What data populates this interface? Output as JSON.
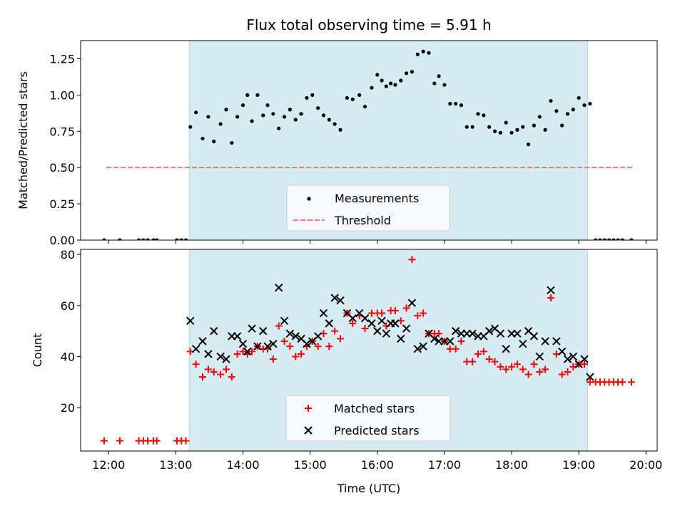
{
  "title": "Flux total observing time = 5.91 h",
  "xlabel": "Time (UTC)",
  "x_ticks": [
    "12:00",
    "13:00",
    "14:00",
    "15:00",
    "16:00",
    "17:00",
    "18:00",
    "19:00",
    "20:00"
  ],
  "colors": {
    "span_fill": "#add8e6",
    "measurement": "#000000",
    "threshold": "#ff6666",
    "matched": "#ff0000",
    "predicted": "#000000"
  },
  "chart_data": [
    {
      "type": "scatter",
      "ylabel": "Matched/Predicted stars",
      "xlim": [
        "11:35",
        "20:10"
      ],
      "ylim": [
        0,
        1.375
      ],
      "y_ticks": [
        "0.00",
        "0.25",
        "0.50",
        "0.75",
        "1.00",
        "1.25"
      ],
      "legend": {
        "position": "lower center",
        "entries": [
          "Measurements",
          "Threshold"
        ]
      },
      "shaded_span": {
        "start": "13:12",
        "end": "19:08"
      },
      "threshold": {
        "name": "Threshold",
        "y": 0.5,
        "x_start": "11:58",
        "x_end": "19:48"
      },
      "series": [
        {
          "name": "Measurements",
          "marker": "dot",
          "points": [
            [
              "11:56",
              0
            ],
            [
              "12:10",
              0
            ],
            [
              "12:27",
              0
            ],
            [
              "12:31",
              0
            ],
            [
              "12:35",
              0
            ],
            [
              "12:40",
              0
            ],
            [
              "12:43",
              0
            ],
            [
              "13:01",
              0
            ],
            [
              "13:05",
              0
            ],
            [
              "13:09",
              0
            ],
            [
              "13:13",
              0.78
            ],
            [
              "13:18",
              0.88
            ],
            [
              "13:24",
              0.7
            ],
            [
              "13:29",
              0.85
            ],
            [
              "13:34",
              0.68
            ],
            [
              "13:40",
              0.8
            ],
            [
              "13:45",
              0.9
            ],
            [
              "13:50",
              0.67
            ],
            [
              "13:55",
              0.85
            ],
            [
              "14:00",
              0.93
            ],
            [
              "14:04",
              1.0
            ],
            [
              "14:08",
              0.82
            ],
            [
              "14:13",
              1.0
            ],
            [
              "14:18",
              0.86
            ],
            [
              "14:22",
              0.93
            ],
            [
              "14:27",
              0.87
            ],
            [
              "14:32",
              0.77
            ],
            [
              "14:37",
              0.85
            ],
            [
              "14:42",
              0.9
            ],
            [
              "14:47",
              0.83
            ],
            [
              "14:52",
              0.87
            ],
            [
              "14:57",
              0.98
            ],
            [
              "15:02",
              1.0
            ],
            [
              "15:07",
              0.91
            ],
            [
              "15:12",
              0.86
            ],
            [
              "15:17",
              0.83
            ],
            [
              "15:22",
              0.8
            ],
            [
              "15:27",
              0.76
            ],
            [
              "15:33",
              0.98
            ],
            [
              "15:38",
              0.97
            ],
            [
              "15:44",
              1.0
            ],
            [
              "15:49",
              0.92
            ],
            [
              "15:55",
              1.05
            ],
            [
              "16:00",
              1.14
            ],
            [
              "16:04",
              1.1
            ],
            [
              "16:08",
              1.06
            ],
            [
              "16:12",
              1.08
            ],
            [
              "16:16",
              1.07
            ],
            [
              "16:21",
              1.1
            ],
            [
              "16:26",
              1.15
            ],
            [
              "16:31",
              1.16
            ],
            [
              "16:36",
              1.28
            ],
            [
              "16:41",
              1.3
            ],
            [
              "16:46",
              1.29
            ],
            [
              "16:51",
              1.08
            ],
            [
              "16:55",
              1.13
            ],
            [
              "17:00",
              1.07
            ],
            [
              "17:05",
              0.94
            ],
            [
              "17:10",
              0.94
            ],
            [
              "17:15",
              0.93
            ],
            [
              "17:20",
              0.78
            ],
            [
              "17:25",
              0.78
            ],
            [
              "17:30",
              0.87
            ],
            [
              "17:35",
              0.86
            ],
            [
              "17:40",
              0.78
            ],
            [
              "17:45",
              0.75
            ],
            [
              "17:50",
              0.74
            ],
            [
              "17:55",
              0.81
            ],
            [
              "18:00",
              0.74
            ],
            [
              "18:05",
              0.76
            ],
            [
              "18:10",
              0.78
            ],
            [
              "18:15",
              0.66
            ],
            [
              "18:20",
              0.79
            ],
            [
              "18:25",
              0.85
            ],
            [
              "18:30",
              0.76
            ],
            [
              "18:35",
              0.96
            ],
            [
              "18:40",
              0.89
            ],
            [
              "18:45",
              0.79
            ],
            [
              "18:50",
              0.87
            ],
            [
              "18:55",
              0.9
            ],
            [
              "19:00",
              0.98
            ],
            [
              "19:05",
              0.93
            ],
            [
              "19:10",
              0.94
            ],
            [
              "19:15",
              0
            ],
            [
              "19:19",
              0
            ],
            [
              "19:23",
              0
            ],
            [
              "19:27",
              0
            ],
            [
              "19:31",
              0
            ],
            [
              "19:35",
              0
            ],
            [
              "19:39",
              0
            ],
            [
              "19:47",
              0
            ]
          ]
        }
      ]
    },
    {
      "type": "scatter",
      "ylabel": "Count",
      "xlabel": "Time (UTC)",
      "xlim": [
        "11:35",
        "20:10"
      ],
      "ylim": [
        3,
        82
      ],
      "y_ticks": [
        "20",
        "40",
        "60",
        "80"
      ],
      "legend": {
        "position": "lower center",
        "entries": [
          "Matched stars",
          "Predicted stars"
        ]
      },
      "shaded_span": {
        "start": "13:12",
        "end": "19:08"
      },
      "series": [
        {
          "name": "Matched stars",
          "marker": "+",
          "points": [
            [
              "11:56",
              7
            ],
            [
              "12:10",
              7
            ],
            [
              "12:27",
              7
            ],
            [
              "12:31",
              7
            ],
            [
              "12:35",
              7
            ],
            [
              "12:40",
              7
            ],
            [
              "12:43",
              7
            ],
            [
              "13:01",
              7
            ],
            [
              "13:05",
              7
            ],
            [
              "13:09",
              7
            ],
            [
              "13:13",
              42
            ],
            [
              "13:18",
              37
            ],
            [
              "13:24",
              32
            ],
            [
              "13:29",
              35
            ],
            [
              "13:34",
              34
            ],
            [
              "13:40",
              33
            ],
            [
              "13:45",
              35
            ],
            [
              "13:50",
              32
            ],
            [
              "13:55",
              41
            ],
            [
              "14:00",
              42
            ],
            [
              "14:04",
              41
            ],
            [
              "14:08",
              42
            ],
            [
              "14:13",
              44
            ],
            [
              "14:18",
              43
            ],
            [
              "14:22",
              43
            ],
            [
              "14:27",
              39
            ],
            [
              "14:32",
              52
            ],
            [
              "14:37",
              46
            ],
            [
              "14:42",
              44
            ],
            [
              "14:47",
              40
            ],
            [
              "14:52",
              41
            ],
            [
              "14:57",
              44
            ],
            [
              "15:02",
              46
            ],
            [
              "15:07",
              44
            ],
            [
              "15:12",
              49
            ],
            [
              "15:17",
              44
            ],
            [
              "15:22",
              50
            ],
            [
              "15:27",
              47
            ],
            [
              "15:33",
              57
            ],
            [
              "15:38",
              53
            ],
            [
              "15:44",
              56
            ],
            [
              "15:49",
              51
            ],
            [
              "15:55",
              57
            ],
            [
              "16:00",
              57
            ],
            [
              "16:04",
              57
            ],
            [
              "16:08",
              52
            ],
            [
              "16:12",
              58
            ],
            [
              "16:16",
              58
            ],
            [
              "16:21",
              54
            ],
            [
              "16:26",
              59
            ],
            [
              "16:31",
              78
            ],
            [
              "16:36",
              56
            ],
            [
              "16:41",
              57
            ],
            [
              "16:46",
              49
            ],
            [
              "16:51",
              49
            ],
            [
              "16:55",
              49
            ],
            [
              "17:00",
              46
            ],
            [
              "17:05",
              43
            ],
            [
              "17:10",
              43
            ],
            [
              "17:15",
              46
            ],
            [
              "17:20",
              38
            ],
            [
              "17:25",
              38
            ],
            [
              "17:30",
              41
            ],
            [
              "17:35",
              42
            ],
            [
              "17:40",
              39
            ],
            [
              "17:45",
              38
            ],
            [
              "17:50",
              36
            ],
            [
              "17:55",
              35
            ],
            [
              "18:00",
              36
            ],
            [
              "18:05",
              37
            ],
            [
              "18:10",
              35
            ],
            [
              "18:15",
              33
            ],
            [
              "18:20",
              37
            ],
            [
              "18:25",
              34
            ],
            [
              "18:30",
              35
            ],
            [
              "18:35",
              63
            ],
            [
              "18:40",
              41
            ],
            [
              "18:45",
              33
            ],
            [
              "18:50",
              34
            ],
            [
              "18:55",
              36
            ],
            [
              "19:00",
              37
            ],
            [
              "19:05",
              37
            ],
            [
              "19:10",
              30
            ],
            [
              "19:15",
              30
            ],
            [
              "19:19",
              30
            ],
            [
              "19:23",
              30
            ],
            [
              "19:27",
              30
            ],
            [
              "19:31",
              30
            ],
            [
              "19:35",
              30
            ],
            [
              "19:39",
              30
            ],
            [
              "19:47",
              30
            ]
          ]
        },
        {
          "name": "Predicted stars",
          "marker": "x",
          "points": [
            [
              "13:13",
              54
            ],
            [
              "13:18",
              43
            ],
            [
              "13:24",
              46
            ],
            [
              "13:29",
              41
            ],
            [
              "13:34",
              50
            ],
            [
              "13:40",
              40
            ],
            [
              "13:45",
              39
            ],
            [
              "13:50",
              48
            ],
            [
              "13:55",
              48
            ],
            [
              "14:00",
              45
            ],
            [
              "14:04",
              42
            ],
            [
              "14:08",
              51
            ],
            [
              "14:13",
              44
            ],
            [
              "14:18",
              50
            ],
            [
              "14:22",
              44
            ],
            [
              "14:27",
              45
            ],
            [
              "14:32",
              67
            ],
            [
              "14:37",
              54
            ],
            [
              "14:42",
              49
            ],
            [
              "14:47",
              48
            ],
            [
              "14:52",
              47
            ],
            [
              "14:57",
              45
            ],
            [
              "15:02",
              46
            ],
            [
              "15:07",
              48
            ],
            [
              "15:12",
              57
            ],
            [
              "15:17",
              53
            ],
            [
              "15:22",
              63
            ],
            [
              "15:27",
              62
            ],
            [
              "15:33",
              57
            ],
            [
              "15:38",
              55
            ],
            [
              "15:44",
              57
            ],
            [
              "15:49",
              55
            ],
            [
              "15:55",
              53
            ],
            [
              "16:00",
              50
            ],
            [
              "16:04",
              54
            ],
            [
              "16:08",
              49
            ],
            [
              "16:12",
              53
            ],
            [
              "16:16",
              53
            ],
            [
              "16:21",
              47
            ],
            [
              "16:26",
              51
            ],
            [
              "16:31",
              61
            ],
            [
              "16:36",
              43
            ],
            [
              "16:41",
              44
            ],
            [
              "16:46",
              49
            ],
            [
              "16:51",
              47
            ],
            [
              "16:55",
              46
            ],
            [
              "17:00",
              46
            ],
            [
              "17:05",
              46
            ],
            [
              "17:10",
              50
            ],
            [
              "17:15",
              49
            ],
            [
              "17:20",
              49
            ],
            [
              "17:25",
              49
            ],
            [
              "17:30",
              48
            ],
            [
              "17:35",
              48
            ],
            [
              "17:40",
              50
            ],
            [
              "17:45",
              51
            ],
            [
              "17:50",
              49
            ],
            [
              "17:55",
              43
            ],
            [
              "18:00",
              49
            ],
            [
              "18:05",
              49
            ],
            [
              "18:10",
              45
            ],
            [
              "18:15",
              50
            ],
            [
              "18:20",
              48
            ],
            [
              "18:25",
              40
            ],
            [
              "18:30",
              46
            ],
            [
              "18:35",
              66
            ],
            [
              "18:40",
              46
            ],
            [
              "18:45",
              42
            ],
            [
              "18:50",
              39
            ],
            [
              "18:55",
              40
            ],
            [
              "19:00",
              37
            ],
            [
              "19:05",
              39
            ],
            [
              "19:10",
              32
            ]
          ]
        }
      ]
    }
  ]
}
